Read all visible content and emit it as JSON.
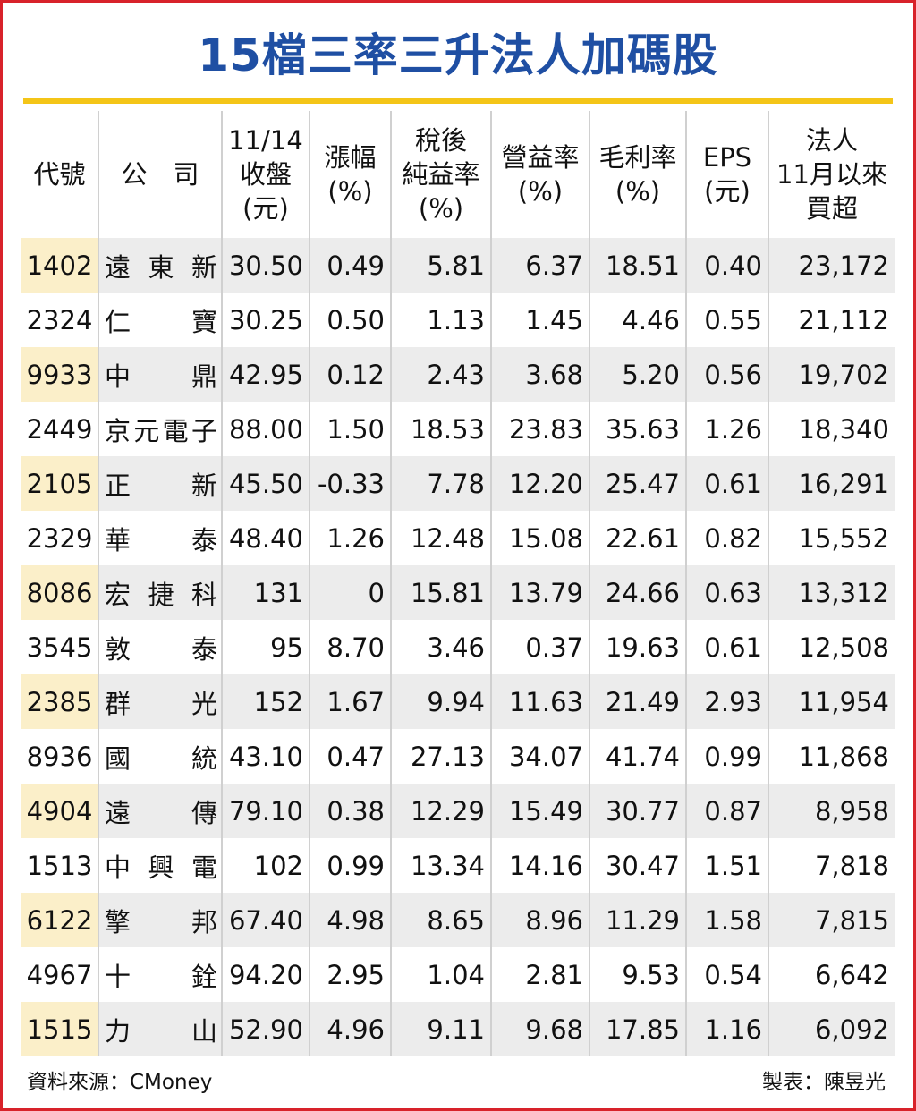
{
  "title": "15檔三率三升法人加碼股",
  "headers": [
    [
      "代號"
    ],
    [
      "公　司"
    ],
    [
      "11/14",
      "收盤",
      "(元)"
    ],
    [
      "漲幅",
      "(%)"
    ],
    [
      "稅後",
      "純益率",
      "(%)"
    ],
    [
      "營益率",
      "(%)"
    ],
    [
      "毛利率",
      "(%)"
    ],
    [
      "EPS",
      "(元)"
    ],
    [
      "法人",
      "11月以來",
      "買超"
    ]
  ],
  "rows": [
    [
      "1402",
      "遠東新",
      "30.50",
      "0.49",
      "5.81",
      "6.37",
      "18.51",
      "0.40",
      "23,172"
    ],
    [
      "2324",
      "仁寶",
      "30.25",
      "0.50",
      "1.13",
      "1.45",
      "4.46",
      "0.55",
      "21,112"
    ],
    [
      "9933",
      "中鼎",
      "42.95",
      "0.12",
      "2.43",
      "3.68",
      "5.20",
      "0.56",
      "19,702"
    ],
    [
      "2449",
      "京元電子",
      "88.00",
      "1.50",
      "18.53",
      "23.83",
      "35.63",
      "1.26",
      "18,340"
    ],
    [
      "2105",
      "正新",
      "45.50",
      "-0.33",
      "7.78",
      "12.20",
      "25.47",
      "0.61",
      "16,291"
    ],
    [
      "2329",
      "華泰",
      "48.40",
      "1.26",
      "12.48",
      "15.08",
      "22.61",
      "0.82",
      "15,552"
    ],
    [
      "8086",
      "宏捷科",
      "131",
      "0",
      "15.81",
      "13.79",
      "24.66",
      "0.63",
      "13,312"
    ],
    [
      "3545",
      "敦泰",
      "95",
      "8.70",
      "3.46",
      "0.37",
      "19.63",
      "0.61",
      "12,508"
    ],
    [
      "2385",
      "群光",
      "152",
      "1.67",
      "9.94",
      "11.63",
      "21.49",
      "2.93",
      "11,954"
    ],
    [
      "8936",
      "國統",
      "43.10",
      "0.47",
      "27.13",
      "34.07",
      "41.74",
      "0.99",
      "11,868"
    ],
    [
      "4904",
      "遠傳",
      "79.10",
      "0.38",
      "12.29",
      "15.49",
      "30.77",
      "0.87",
      "8,958"
    ],
    [
      "1513",
      "中興電",
      "102",
      "0.99",
      "13.34",
      "14.16",
      "30.47",
      "1.51",
      "7,818"
    ],
    [
      "6122",
      "擎邦",
      "67.40",
      "4.98",
      "8.65",
      "8.96",
      "11.29",
      "1.58",
      "7,815"
    ],
    [
      "4967",
      "十銓",
      "94.20",
      "2.95",
      "1.04",
      "2.81",
      "9.53",
      "0.54",
      "6,642"
    ],
    [
      "1515",
      "力山",
      "52.90",
      "4.96",
      "9.11",
      "9.68",
      "17.85",
      "1.16",
      "6,092"
    ]
  ],
  "footer": {
    "source": "資料來源：CMoney",
    "author": "製表：陳昱光"
  },
  "colors": {
    "title": "#1f4fa3",
    "rule": "#f4c518",
    "border": "#d8222a",
    "shade": "#ececec",
    "code_shade": "#fbefc9"
  }
}
